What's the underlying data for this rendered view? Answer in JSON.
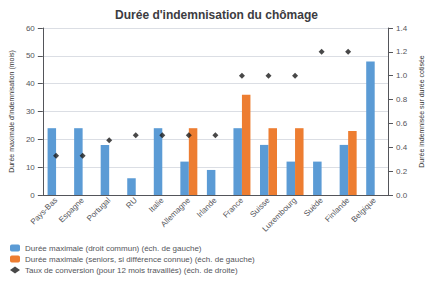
{
  "chart_data": {
    "type": "bar",
    "title": "Durée d'indemnisation du chômage",
    "ylabel": "Durée maximale d'indemnisation (mois)",
    "y2label": "Durée indemnisée sur durée cotisée",
    "categories": [
      "Pays-Bas",
      "Espagne",
      "Portugal",
      "RU",
      "Italie",
      "Allemagne",
      "Irlande",
      "France",
      "Suisse",
      "Luxembourg",
      "Suède",
      "Finlande",
      "Belgique"
    ],
    "series": [
      {
        "name": "Durée maximale (droit commun) (éch. de gauche)",
        "type": "bar",
        "color": "#5B9BD5",
        "values": [
          24,
          24,
          18,
          6,
          24,
          12,
          9,
          24,
          18,
          12,
          12,
          18,
          48
        ]
      },
      {
        "name": "Durée maximale (seniors, si différence connue) (éch. de gauche)",
        "type": "bar",
        "color": "#ED7D31",
        "values": [
          null,
          null,
          null,
          null,
          null,
          24,
          null,
          36,
          24,
          24,
          null,
          23,
          null
        ]
      },
      {
        "name": "Taux de conversion (pour 12 mois travaillés) (éch. de droite)",
        "type": "scatter",
        "marker": "diamond",
        "color": "#1a1a1a",
        "axis": "y2",
        "values": [
          0.33,
          0.33,
          0.46,
          0.5,
          0.5,
          0.5,
          0.5,
          1.0,
          1.0,
          1.0,
          1.2,
          1.2,
          null
        ]
      }
    ],
    "ylim": [
      0,
      60
    ],
    "yticks": [
      0,
      10,
      20,
      30,
      40,
      50,
      60
    ],
    "y2lim": [
      0,
      1.4
    ],
    "y2ticks": [
      {
        "value": 0,
        "label": "0.0"
      },
      0.2,
      0.4,
      0.6,
      0.8,
      {
        "value": 1.0,
        "label": "1.0"
      },
      1.2,
      1.4
    ],
    "grid": true,
    "legend": "lower left"
  }
}
